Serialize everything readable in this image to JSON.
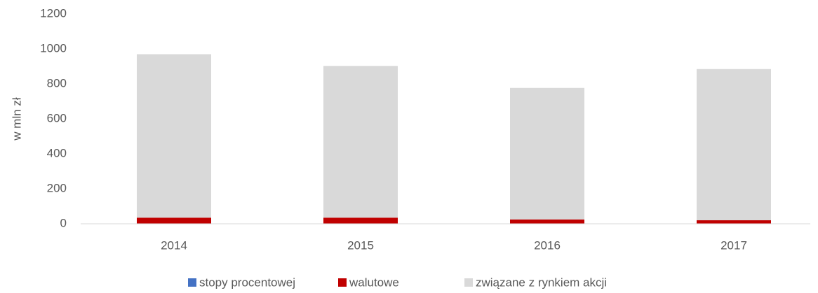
{
  "chart_data": {
    "type": "stacked_bar",
    "y_label": "w mln zł",
    "categories": [
      "2014",
      "2015",
      "2016",
      "2017"
    ],
    "series": [
      {
        "name": "stopy procentowej",
        "color": "#4472c4",
        "values": [
          0,
          0,
          0,
          0
        ]
      },
      {
        "name": "walutowe",
        "color": "#c00000",
        "values": [
          35,
          35,
          25,
          20
        ]
      },
      {
        "name": "związane z rynkiem akcji",
        "color": "#d9d9d9",
        "values": [
          935,
          868,
          752,
          865
        ]
      }
    ],
    "ylim": [
      0,
      1200
    ],
    "yticks": [
      0,
      200,
      400,
      600,
      800,
      1000,
      1200
    ],
    "legend": "bottom"
  }
}
